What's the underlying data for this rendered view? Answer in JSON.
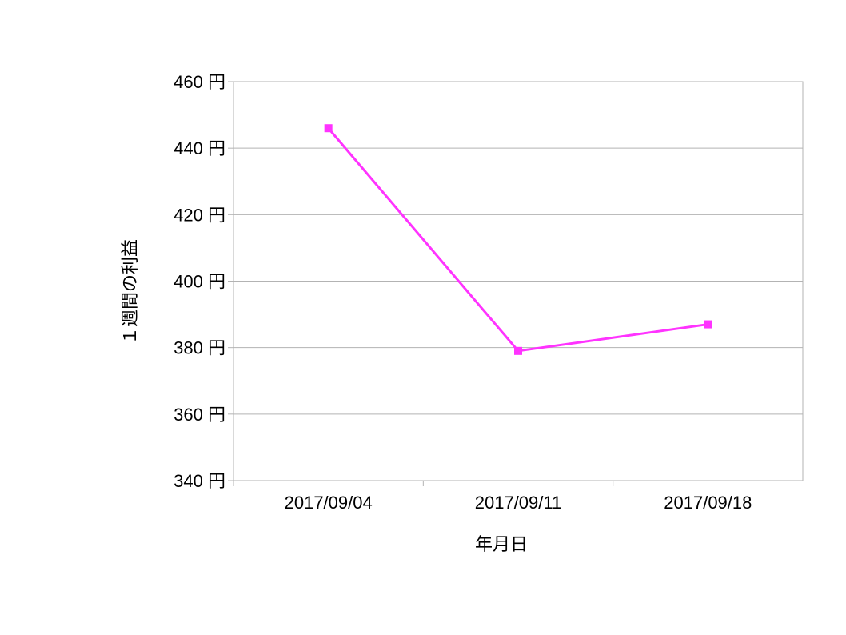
{
  "chart_data": {
    "type": "line",
    "title": "",
    "xlabel": "年月日",
    "ylabel": "１週間の利益",
    "categories": [
      "2017/09/04",
      "2017/09/11",
      "2017/09/18"
    ],
    "series": [
      {
        "values": [
          446,
          379,
          387
        ],
        "color": "#ff33ff",
        "marker": "square"
      }
    ],
    "ylim": [
      340,
      460
    ],
    "y_ticks": [
      340,
      360,
      380,
      400,
      420,
      440,
      460
    ],
    "y_tick_labels": [
      "340 円",
      "360 円",
      "380 円",
      "400 円",
      "420 円",
      "440 円",
      "460 円"
    ],
    "grid": true,
    "grid_color": "#b3b3b3",
    "legend": "none"
  }
}
